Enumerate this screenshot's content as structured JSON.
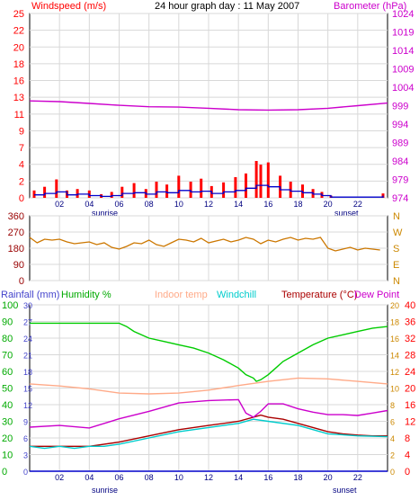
{
  "header": {
    "title": "24 hour graph day : 11 May 2007",
    "left_label": "Windspeed (m/s)",
    "right_label": "Barometer (hPa)"
  },
  "legend3": {
    "rainfall": "Rainfall (mm)",
    "humidity": "Humidity %",
    "indoor": "Indoor temp",
    "windchill": "Windchill",
    "temperature": "Temperature (°C)",
    "dewpoint": "Dew Point"
  },
  "sun": {
    "sunrise": "sunrise",
    "sunset": "sunset"
  },
  "colors": {
    "wind_avg": "#0000cc",
    "wind_gust": "#ff0000",
    "barometer": "#cc00cc",
    "direction": "#cc7700",
    "humidity": "#00cc00",
    "indoor": "#ffaa88",
    "windchill": "#00cccc",
    "temperature": "#aa0000",
    "dewpoint": "#cc00cc",
    "rain": "#0000cc",
    "grid": "#d8d8d8",
    "axis_left": "#990000",
    "axis_right": "#cc8800",
    "axis_red": "#ff0000",
    "axis_magenta": "#cc00cc"
  },
  "chart_data": [
    {
      "type": "line",
      "title": "24 hour graph day : 11 May 2007",
      "x_ticks": [
        "02",
        "04",
        "06",
        "08",
        "10",
        "12",
        "14",
        "16",
        "18",
        "20",
        "22"
      ],
      "x_range_hours": [
        0,
        24
      ],
      "y_left": {
        "label": "Windspeed (m/s)",
        "range": [
          0,
          25
        ],
        "ticks": [
          "0",
          "2",
          "4",
          "7",
          "9",
          "11",
          "13",
          "16",
          "18",
          "20",
          "22",
          "25"
        ]
      },
      "y_right": {
        "label": "Barometer (hPa)",
        "range": [
          974,
          1024
        ],
        "ticks": [
          "974",
          "979",
          "984",
          "989",
          "994",
          "999",
          "1004",
          "1009",
          "1014",
          "1019",
          "1024"
        ]
      },
      "series": [
        {
          "name": "Windspeed (m/s)",
          "kind": "gust",
          "x": [
            0.3,
            1,
            1.8,
            2.5,
            3.2,
            4,
            4.8,
            5.5,
            6.2,
            7,
            7.8,
            8.5,
            9.2,
            10,
            10.8,
            11.5,
            12.2,
            13,
            13.8,
            14.5,
            15.2,
            15.5,
            16,
            16.8,
            17.5,
            18.3,
            19,
            19.6,
            20.2,
            23.7
          ],
          "values": [
            1,
            1.5,
            2.5,
            1,
            1.2,
            1,
            0.5,
            0.8,
            1.5,
            2,
            1.2,
            2.2,
            1.8,
            3,
            2.2,
            2.6,
            1.6,
            2.1,
            2.8,
            3.3,
            5,
            4.5,
            4.8,
            3,
            2.2,
            1.8,
            1.2,
            0.8,
            0.3,
            0.6
          ]
        },
        {
          "name": "Windspeed avg",
          "kind": "avg",
          "x": [
            0.3,
            1,
            1.8,
            2.5,
            3.2,
            4,
            4.8,
            5.5,
            6.2,
            7,
            7.8,
            8.5,
            9.2,
            10,
            10.8,
            11.5,
            12.2,
            13,
            13.8,
            14.5,
            15.2,
            16,
            16.8,
            17.5,
            18.3,
            19,
            19.6,
            20.2,
            23.7
          ],
          "values": [
            0.4,
            0.6,
            0.8,
            0.4,
            0.5,
            0.3,
            0.2,
            0.3,
            0.6,
            0.7,
            0.5,
            0.8,
            0.7,
            1,
            0.8,
            0.9,
            0.6,
            0.8,
            1,
            1.3,
            1.7,
            1.5,
            1.1,
            0.9,
            0.7,
            0.5,
            0.3,
            0.1,
            0.3
          ]
        },
        {
          "name": "Barometer (hPa)",
          "kind": "baro",
          "x": [
            0,
            2,
            4,
            6,
            8,
            10,
            12,
            14,
            16,
            18,
            20,
            22,
            24
          ],
          "values": [
            1000.3,
            1000.1,
            999.6,
            999.1,
            998.7,
            998.6,
            998.3,
            997.9,
            997.8,
            997.9,
            998.3,
            999.0,
            999.7
          ]
        }
      ]
    },
    {
      "type": "line",
      "y_left": {
        "range": [
          0,
          360
        ],
        "ticks": [
          "0",
          "90",
          "180",
          "270",
          "360"
        ]
      },
      "y_right_ticks": [
        "N",
        "E",
        "S",
        "W",
        "N"
      ],
      "x_ticks": [
        "02",
        "04",
        "06",
        "08",
        "10",
        "12",
        "14",
        "16",
        "18",
        "20",
        "22"
      ],
      "series": [
        {
          "name": "Wind direction",
          "x": [
            0,
            0.5,
            1,
            1.5,
            2,
            2.5,
            3,
            3.5,
            4,
            4.5,
            5,
            5.5,
            6,
            6.5,
            7,
            7.5,
            8,
            8.5,
            9,
            9.5,
            10,
            10.5,
            11,
            11.5,
            12,
            12.5,
            13,
            13.5,
            14,
            14.5,
            15,
            15.5,
            16,
            16.5,
            17,
            17.5,
            18,
            18.5,
            19,
            19.5,
            20,
            20.5,
            21,
            21.5,
            22,
            22.5,
            23,
            23.5
          ],
          "values": [
            240,
            210,
            230,
            225,
            230,
            215,
            205,
            210,
            215,
            200,
            210,
            185,
            175,
            190,
            210,
            205,
            225,
            200,
            190,
            210,
            230,
            225,
            215,
            235,
            210,
            220,
            230,
            215,
            225,
            240,
            230,
            205,
            225,
            215,
            230,
            240,
            225,
            235,
            230,
            240,
            180,
            165,
            175,
            185,
            170,
            180,
            175,
            170
          ]
        }
      ]
    },
    {
      "type": "line",
      "y_left": {
        "label": "Rainfall (mm)",
        "range": [
          0,
          30
        ],
        "ticks": [
          "0",
          "3",
          "6",
          "9",
          "12",
          "15",
          "18",
          "21",
          "24",
          "27",
          "30"
        ]
      },
      "y_left2": {
        "label": "Humidity %",
        "range": [
          0,
          100
        ],
        "ticks": [
          "0",
          "10",
          "20",
          "30",
          "40",
          "50",
          "60",
          "70",
          "80",
          "90",
          "100"
        ]
      },
      "y_right": {
        "label": "Temperature (°C)",
        "range": [
          0,
          40
        ],
        "ticks": [
          "0",
          "4",
          "8",
          "12",
          "16",
          "20",
          "24",
          "28",
          "32",
          "36",
          "40"
        ]
      },
      "y_right2": {
        "ticks": [
          "0",
          "2",
          "4",
          "6",
          "8",
          "10",
          "12",
          "14",
          "16",
          "18",
          "20"
        ]
      },
      "x_ticks": [
        "02",
        "04",
        "06",
        "08",
        "10",
        "12",
        "14",
        "16",
        "18",
        "20",
        "22"
      ],
      "series": [
        {
          "name": "Humidity %",
          "x": [
            0,
            2,
            4,
            6,
            6.5,
            7,
            8,
            9,
            10,
            11,
            12,
            13,
            14,
            14.5,
            15,
            15.2,
            15.5,
            16,
            16.5,
            17,
            18,
            19,
            20,
            21,
            22,
            23,
            24
          ],
          "values": [
            89,
            89,
            89,
            89,
            87,
            84,
            80,
            78,
            76,
            74,
            71,
            67,
            62,
            58,
            56,
            54,
            55,
            58,
            62,
            66,
            71,
            76,
            80,
            82,
            84,
            86,
            87
          ]
        },
        {
          "name": "Indoor temp",
          "x": [
            0,
            2,
            4,
            6,
            8,
            10,
            12,
            14,
            16,
            18,
            20,
            22,
            24
          ],
          "values": [
            21,
            20.5,
            19.8,
            18.8,
            18.6,
            18.8,
            19.5,
            20.6,
            21.6,
            22.4,
            22.2,
            21.6,
            21
          ]
        },
        {
          "name": "Temperature (°C)",
          "x": [
            0,
            2,
            4,
            6,
            8,
            10,
            12,
            14,
            15,
            15.5,
            16,
            17,
            18,
            19,
            20,
            21,
            22,
            23,
            24
          ],
          "values": [
            6,
            6,
            6,
            7,
            8.5,
            10,
            11,
            12,
            13,
            13.5,
            13,
            12.5,
            11.5,
            10.5,
            9.5,
            9,
            8.7,
            8.5,
            8.5
          ]
        },
        {
          "name": "Windchill",
          "x": [
            0,
            1,
            2,
            3,
            4,
            5,
            6,
            8,
            10,
            12,
            14,
            15,
            16,
            18,
            20,
            22,
            24
          ],
          "values": [
            6,
            5.5,
            6,
            5.5,
            6,
            6,
            6.5,
            8,
            9.5,
            10.5,
            11.5,
            12.5,
            12,
            11,
            9,
            8.5,
            8.3
          ]
        },
        {
          "name": "Dew Point",
          "x": [
            0,
            2,
            4,
            6,
            8,
            10,
            12,
            14,
            14.5,
            15,
            15.5,
            16,
            17,
            18,
            19,
            20,
            21,
            22,
            23,
            24
          ],
          "values": [
            5.3,
            5.5,
            5.2,
            6.3,
            7.2,
            8.2,
            8.5,
            8.6,
            7,
            6.5,
            7.2,
            8.1,
            8.1,
            7.5,
            7.1,
            6.8,
            6.8,
            6.7,
            7,
            7.3
          ]
        },
        {
          "name": "Rainfall (mm)",
          "x": [
            0,
            24
          ],
          "values": [
            0,
            0
          ]
        }
      ]
    }
  ]
}
